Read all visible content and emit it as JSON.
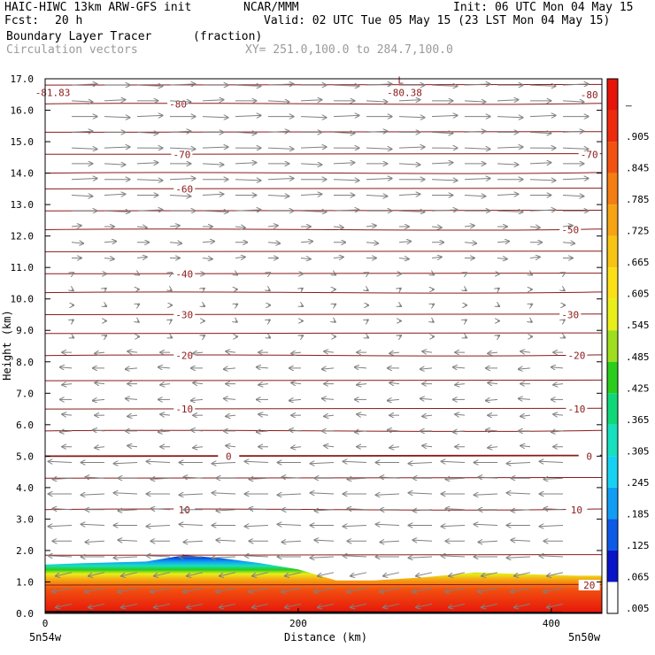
{
  "header": {
    "model_title": "HAIC-HIWC 13km ARW-GFS init",
    "org": "NCAR/MMM",
    "init": "Init: 06 UTC Mon 04 May 15",
    "fcst_label": "Fcst:",
    "fcst_value": "20 h",
    "valid": "Valid: 02 UTC Tue 05 May 15 (23 LST Mon 04 May 15)",
    "field": "Boundary Layer Tracer",
    "field_units": "(fraction)",
    "vectors_label": "Circulation vectors",
    "xy_label": "XY= 251.0,100.0 to 284.7,100.0"
  },
  "x_axis": {
    "title": "Distance (km)",
    "ticks": [
      "0",
      "200",
      "400"
    ],
    "left_end": "5n54w",
    "right_end": "5n50w"
  },
  "y_axis": {
    "title": "Height (km)",
    "ticks": [
      "0.0",
      "1.0",
      "2.0",
      "3.0",
      "4.0",
      "5.0",
      "6.0",
      "7.0",
      "8.0",
      "9.0",
      "10.0",
      "11.0",
      "12.0",
      "13.0",
      "14.0",
      "15.0",
      "16.0",
      "17.0"
    ]
  },
  "colorbar": {
    "labels": [
      ".005",
      ".065",
      ".125",
      ".185",
      ".245",
      ".305",
      ".365",
      ".425",
      ".485",
      ".545",
      ".605",
      ".665",
      ".725",
      ".785",
      ".845",
      ".905",
      "–"
    ],
    "colors": [
      "#ffffff",
      "#0a14c8",
      "#0c5ae6",
      "#109ef4",
      "#16d2f0",
      "#16e0be",
      "#10d878",
      "#2ccc1c",
      "#9ede1e",
      "#e8ee1a",
      "#fbe018",
      "#f8c414",
      "#f6a414",
      "#f47e12",
      "#f25210",
      "#ee2a0e",
      "#e6140a"
    ]
  },
  "chart_data": {
    "type": "heatmap",
    "description_field": "Boundary Layer Tracer (fraction)",
    "x_range_km": [
      0,
      440
    ],
    "y_range_km": [
      0,
      17
    ],
    "contour_labels": [
      {
        "text": "-80",
        "value": -80
      },
      {
        "text": "-70",
        "value": -70
      },
      {
        "text": "-60",
        "value": -60
      },
      {
        "text": "-50",
        "value": -50
      },
      {
        "text": "-40",
        "value": -40
      },
      {
        "text": "-30",
        "value": -30
      },
      {
        "text": "-20",
        "value": -20
      },
      {
        "text": "-10",
        "value": -10
      },
      {
        "text": "0",
        "value": 0
      },
      {
        "text": "10",
        "value": 10
      },
      {
        "text": "20",
        "value": 20
      }
    ],
    "extrema": [
      {
        "text": "L",
        "kind": "low"
      },
      {
        "text": "-80.38",
        "value": -80.38
      },
      {
        "text": "-81.83",
        "value": -81.83
      }
    ],
    "contour_color": "#8b1a1a",
    "vector_color": "#808080"
  }
}
